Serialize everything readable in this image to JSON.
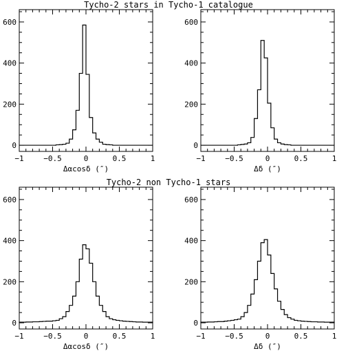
{
  "titles": {
    "top": "Tycho-2 stars in Tycho-1 catalogue",
    "bottom": "Tycho-2 non Tycho-1 stars"
  },
  "chart_data": [
    {
      "type": "histogram",
      "panel": "top-left",
      "xlabel": "Δαcosδ (″)",
      "xlim": [
        -1,
        1
      ],
      "ylim": [
        -30,
        660
      ],
      "xticks": [
        "−1",
        "−0.5",
        "0",
        "0.5",
        "1"
      ],
      "yticks": [
        "0",
        "200",
        "400",
        "600"
      ],
      "bin_width": 0.05,
      "bins_start": -1.0,
      "counts": [
        0,
        0,
        0,
        0,
        0,
        0,
        0,
        0,
        0,
        0,
        0,
        2,
        3,
        5,
        10,
        30,
        75,
        170,
        350,
        585,
        345,
        135,
        60,
        30,
        15,
        5,
        3,
        2,
        0,
        0,
        0,
        0,
        0,
        0,
        0,
        0,
        0,
        0,
        0,
        0
      ]
    },
    {
      "type": "histogram",
      "panel": "top-right",
      "xlabel": "Δδ (″)",
      "xlim": [
        -1,
        1
      ],
      "ylim": [
        -30,
        660
      ],
      "xticks": [
        "−1",
        "−0.5",
        "0",
        "0.5",
        "1"
      ],
      "yticks": [
        "0",
        "200",
        "400",
        "600"
      ],
      "bin_width": 0.05,
      "bins_start": -1.0,
      "counts": [
        0,
        0,
        0,
        0,
        0,
        0,
        0,
        0,
        0,
        0,
        0,
        2,
        4,
        6,
        12,
        38,
        130,
        270,
        510,
        425,
        205,
        85,
        30,
        12,
        6,
        3,
        2,
        0,
        0,
        0,
        0,
        0,
        0,
        0,
        0,
        0,
        0,
        0,
        0,
        0
      ]
    },
    {
      "type": "histogram",
      "panel": "bottom-left",
      "xlabel": "Δαcosδ (″)",
      "xlim": [
        -1,
        1
      ],
      "ylim": [
        -30,
        660
      ],
      "xticks": [
        "−1",
        "−0.5",
        "0",
        "0.5",
        "1"
      ],
      "yticks": [
        "0",
        "200",
        "400",
        "600"
      ],
      "bin_width": 0.05,
      "bins_start": -1.0,
      "counts": [
        3,
        3,
        4,
        4,
        5,
        5,
        6,
        7,
        8,
        8,
        10,
        12,
        20,
        30,
        55,
        85,
        130,
        200,
        310,
        380,
        360,
        290,
        200,
        130,
        85,
        55,
        30,
        20,
        15,
        12,
        10,
        8,
        7,
        6,
        5,
        4,
        4,
        3,
        3,
        3
      ]
    },
    {
      "type": "histogram",
      "panel": "bottom-right",
      "xlabel": "Δδ (″)",
      "xlim": [
        -1,
        1
      ],
      "ylim": [
        -30,
        660
      ],
      "xticks": [
        "−1",
        "−0.5",
        "0",
        "0.5",
        "1"
      ],
      "yticks": [
        "0",
        "200",
        "400",
        "600"
      ],
      "bin_width": 0.05,
      "bins_start": -1.0,
      "counts": [
        3,
        3,
        4,
        4,
        5,
        6,
        6,
        8,
        10,
        12,
        15,
        18,
        30,
        50,
        85,
        140,
        210,
        300,
        390,
        405,
        330,
        240,
        165,
        105,
        65,
        40,
        25,
        18,
        12,
        10,
        8,
        7,
        6,
        5,
        5,
        4,
        4,
        3,
        3,
        3
      ]
    }
  ]
}
